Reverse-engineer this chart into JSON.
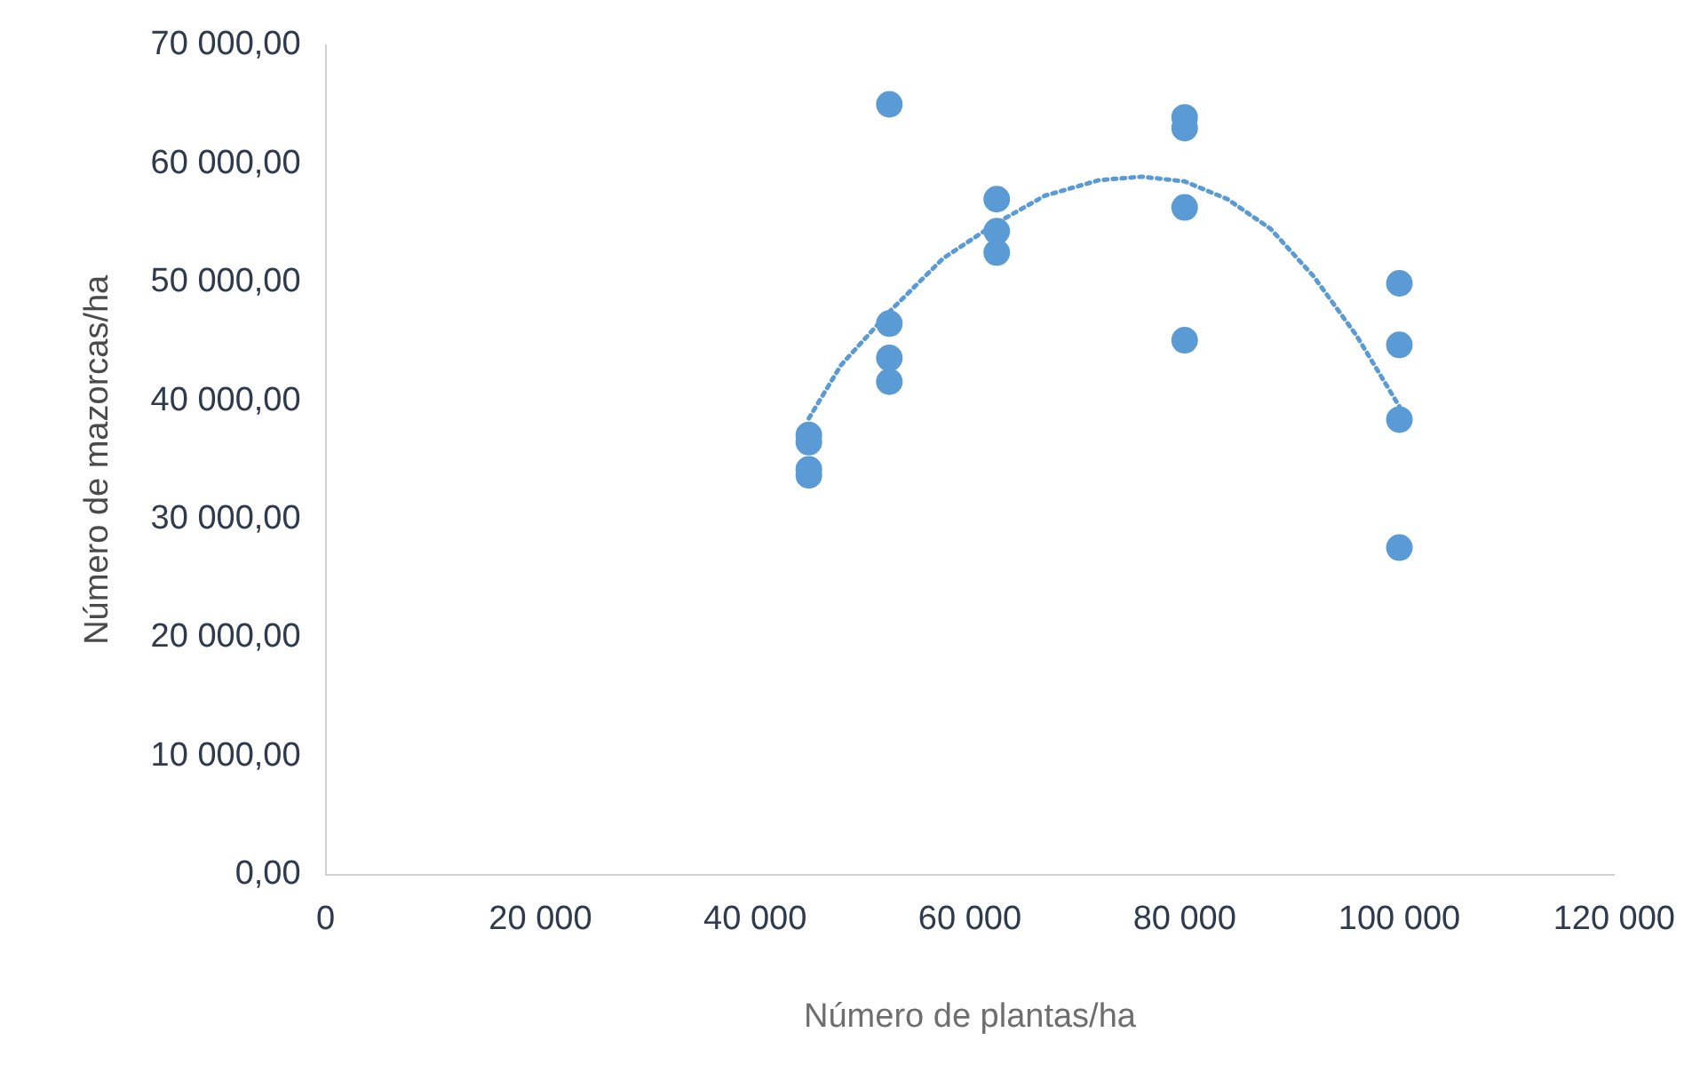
{
  "chart_data": {
    "type": "scatter",
    "xlabel": "Número de plantas/ha",
    "ylabel": "Número de mazorcas/ha",
    "xlim": [
      0,
      120000
    ],
    "xticks": [
      0,
      {
        "value": 20000,
        "label": "20 000"
      },
      {
        "value": 40000,
        "label": "40 000"
      },
      {
        "value": 60000,
        "label": "60 000"
      },
      {
        "value": 80000,
        "label": "80 000"
      },
      {
        "value": 100000,
        "label": "100 000"
      },
      {
        "value": 120000,
        "label": "120 000"
      }
    ],
    "ylim": [
      0,
      70000
    ],
    "yticks": [
      {
        "value": 0,
        "label": "0,00"
      },
      {
        "value": 10000,
        "label": "10 000,00"
      },
      {
        "value": 20000,
        "label": "20 000,00"
      },
      {
        "value": 30000,
        "label": "30 000,00"
      },
      {
        "value": 40000,
        "label": "40 000,00"
      },
      {
        "value": 50000,
        "label": "50 000,00"
      },
      {
        "value": 60000,
        "label": "60 000,00"
      },
      {
        "value": 70000,
        "label": "70 000,00"
      }
    ],
    "grid": false,
    "legend": false,
    "marker": "circle",
    "series": [
      {
        "type": "scatter",
        "color": "#5b9bd5",
        "x": [
          45000,
          45000,
          45000,
          45000,
          52500,
          52500,
          52500,
          52500,
          62500,
          62500,
          62500,
          80000,
          80000,
          80000,
          80000,
          100000,
          100000,
          100000,
          100000
        ],
        "values": [
          37100,
          36500,
          34200,
          33700,
          65000,
          46500,
          43600,
          41600,
          57000,
          54300,
          52500,
          63900,
          63000,
          56300,
          45100,
          49900,
          44700,
          38400,
          27600
        ]
      },
      {
        "type": "line",
        "color": "#5b9bd5",
        "line_style": "dotted",
        "marker": "none",
        "x": [
          45000,
          48000,
          52500,
          57500,
          62500,
          67000,
          72000,
          76000,
          80000,
          84000,
          88000,
          92000,
          96000,
          100000
        ],
        "values": [
          38500,
          43000,
          47500,
          52000,
          55000,
          57300,
          58600,
          58900,
          58500,
          57000,
          54500,
          50500,
          45500,
          39500
        ]
      }
    ]
  }
}
